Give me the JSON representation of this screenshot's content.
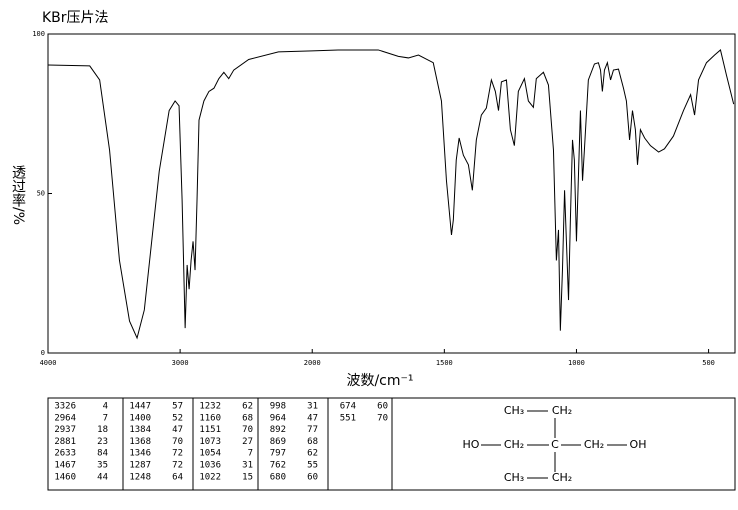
{
  "chart_data": {
    "type": "line",
    "title": "KBr压片法",
    "x_label": "波数/cm⁻¹",
    "y_label": "透过率/%",
    "xlim": [
      4000,
      400
    ],
    "xticks": [
      4000,
      3000,
      2000,
      1500,
      1000,
      500
    ],
    "ylim": [
      0,
      100
    ],
    "yticks": [
      0,
      50,
      100
    ],
    "color": "#000000",
    "x": [
      4000,
      3684,
      3609,
      3534,
      3459,
      3383,
      3326,
      3271,
      3158,
      3083,
      3038,
      3008,
      2985,
      2962,
      2947,
      2932,
      2917,
      2902,
      2887,
      2872,
      2857,
      2820,
      2782,
      2744,
      2707,
      2669,
      2632,
      2594,
      2481,
      2256,
      2000,
      1902,
      1750,
      1674,
      1636,
      1598,
      1542,
      1511,
      1492,
      1473,
      1466,
      1455,
      1444,
      1428,
      1409,
      1394,
      1379,
      1360,
      1341,
      1322,
      1307,
      1295,
      1284,
      1265,
      1250,
      1235,
      1220,
      1197,
      1182,
      1163,
      1152,
      1125,
      1106,
      1087,
      1076,
      1068,
      1061,
      1053,
      1045,
      1038,
      1030,
      1023,
      1015,
      1008,
      1000,
      992,
      985,
      977,
      970,
      955,
      932,
      917,
      909,
      902,
      894,
      883,
      871,
      860,
      841,
      822,
      811,
      799,
      788,
      777,
      769,
      758,
      742,
      720,
      689,
      667,
      633,
      595,
      568,
      553,
      538,
      508,
      477,
      455,
      432,
      405
    ],
    "values": [
      90.3,
      90,
      85.6,
      63.6,
      29,
      10,
      4.7,
      13.5,
      57,
      76,
      79,
      77.5,
      48,
      7.8,
      27.6,
      20,
      29,
      35,
      26,
      48,
      73,
      79,
      82,
      83,
      86,
      88,
      86,
      88.7,
      92,
      94.4,
      94.7,
      95,
      95,
      93,
      92.5,
      93.4,
      91,
      79,
      54,
      37,
      41.7,
      60.5,
      67.4,
      62,
      59,
      51,
      66.8,
      74.6,
      76.8,
      85.6,
      82,
      76,
      85,
      85.6,
      70,
      65,
      82,
      86,
      79,
      77,
      86,
      88,
      84,
      63.6,
      29,
      38.6,
      7,
      26,
      51,
      35,
      16.6,
      41.7,
      66.8,
      60.5,
      35,
      57,
      76,
      54,
      63.6,
      85.6,
      90.6,
      91,
      88.7,
      82,
      88.7,
      91,
      85.6,
      88.7,
      89,
      83,
      79,
      66.8,
      76,
      70,
      59,
      70,
      67.4,
      65,
      63,
      64,
      68,
      76,
      81,
      74.6,
      85.6,
      91,
      93.4,
      95,
      87,
      78
    ]
  },
  "peak_table": {
    "columns": [
      [
        [
          3326,
          4
        ],
        [
          2964,
          7
        ],
        [
          2937,
          18
        ],
        [
          2881,
          23
        ],
        [
          2633,
          84
        ],
        [
          1467,
          35
        ],
        [
          1460,
          44
        ]
      ],
      [
        [
          1447,
          57
        ],
        [
          1400,
          52
        ],
        [
          1384,
          47
        ],
        [
          1368,
          70
        ],
        [
          1346,
          72
        ],
        [
          1287,
          72
        ],
        [
          1248,
          64
        ]
      ],
      [
        [
          1232,
          62
        ],
        [
          1160,
          68
        ],
        [
          1151,
          70
        ],
        [
          1073,
          27
        ],
        [
          1054,
          7
        ],
        [
          1036,
          31
        ],
        [
          1022,
          15
        ]
      ],
      [
        [
          998,
          31
        ],
        [
          964,
          47
        ],
        [
          892,
          77
        ],
        [
          869,
          68
        ],
        [
          797,
          62
        ],
        [
          762,
          55
        ],
        [
          680,
          60
        ]
      ],
      [
        [
          674,
          60
        ],
        [
          551,
          70
        ]
      ]
    ]
  },
  "structure": {
    "nodes": [
      "CH₃",
      "CH₂",
      "HO",
      "CH₂",
      "C",
      "CH₂",
      "OH",
      "CH₃",
      "CH₂"
    ]
  }
}
